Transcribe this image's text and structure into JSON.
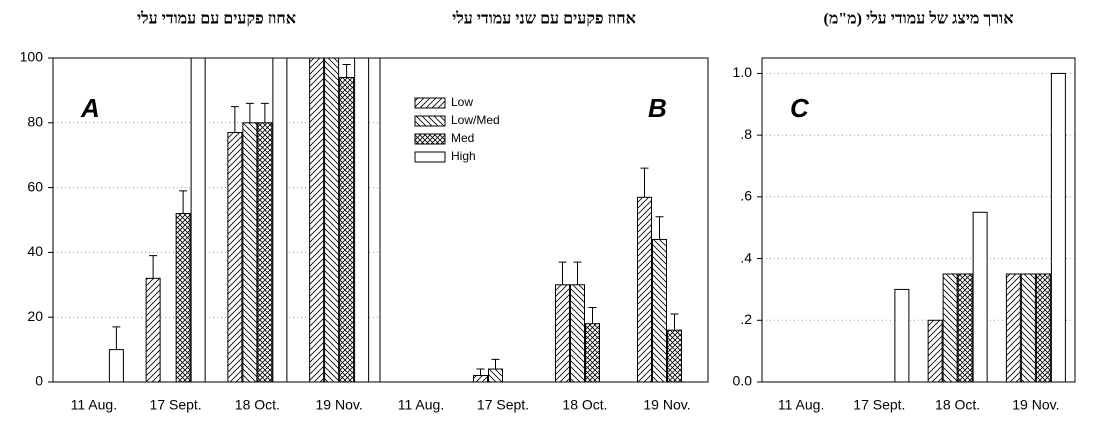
{
  "chart_data": [
    {
      "type": "bar",
      "title": "אחוז פקעים עם עמודי עלי",
      "annotation": "A",
      "categories": [
        "11 Aug.",
        "17 Sept.",
        "18 Oct.",
        "19 Nov."
      ],
      "series": [
        {
          "pattern": "diagonal",
          "values": [
            0,
            32,
            77,
            100
          ],
          "errors": [
            null,
            7,
            8,
            null
          ]
        },
        {
          "pattern": "backdiagonal",
          "values": [
            0,
            0,
            80,
            100
          ],
          "errors": [
            null,
            null,
            6,
            null
          ]
        },
        {
          "pattern": "crosshatch",
          "values": [
            0,
            52,
            80,
            94
          ],
          "errors": [
            null,
            7,
            6,
            4
          ]
        },
        {
          "pattern": "none",
          "values": [
            10,
            100,
            100,
            100
          ],
          "errors": [
            7,
            null,
            null,
            null
          ]
        }
      ],
      "ylim": [
        0,
        100
      ],
      "yticks": [
        0,
        20,
        40,
        60,
        80,
        100
      ],
      "grid": true
    },
    {
      "type": "bar",
      "title": "אחוז פקעים עם שני עמודי עלי",
      "annotation": "B",
      "categories": [
        "11 Aug.",
        "17 Sept.",
        "18 Oct.",
        "19 Nov."
      ],
      "series": [
        {
          "name": "Low",
          "pattern": "diagonal",
          "values": [
            0,
            2,
            30,
            57
          ],
          "errors": [
            null,
            2,
            7,
            9
          ]
        },
        {
          "name": "Low/Med",
          "pattern": "backdiagonal",
          "values": [
            0,
            4,
            30,
            44
          ],
          "errors": [
            null,
            3,
            7,
            7
          ]
        },
        {
          "name": "Med",
          "pattern": "crosshatch",
          "values": [
            0,
            0,
            18,
            16
          ],
          "errors": [
            null,
            null,
            5,
            5
          ]
        },
        {
          "name": "High",
          "pattern": "none",
          "values": [
            0,
            0,
            0,
            0
          ]
        }
      ],
      "ylim": [
        0,
        100
      ],
      "grid": false,
      "legend": "upper left"
    },
    {
      "type": "bar",
      "title": "אורך מיצג של עמודי עלי (מ\"מ)",
      "annotation": "C",
      "categories": [
        "11 Aug.",
        "17 Sept.",
        "18 Oct.",
        "19 Nov."
      ],
      "series": [
        {
          "pattern": "diagonal",
          "values": [
            0,
            0,
            0.2,
            0.35
          ]
        },
        {
          "pattern": "backdiagonal",
          "values": [
            0,
            0,
            0.35,
            0.35
          ]
        },
        {
          "pattern": "crosshatch",
          "values": [
            0,
            0,
            0.35,
            0.35
          ]
        },
        {
          "pattern": "none",
          "values": [
            0,
            0.3,
            0.55,
            1.0
          ]
        }
      ],
      "ylim": [
        0,
        1.05
      ],
      "yticks": [
        {
          "value": 0,
          "label": "0.0"
        },
        {
          "value": 0.2,
          "label": ".2"
        },
        {
          "value": 0.4,
          "label": ".4"
        },
        {
          "value": 0.6,
          "label": ".6"
        },
        {
          "value": 0.8,
          "label": ".8"
        },
        {
          "value": 1.0,
          "label": "1.0"
        }
      ],
      "grid": true
    }
  ]
}
